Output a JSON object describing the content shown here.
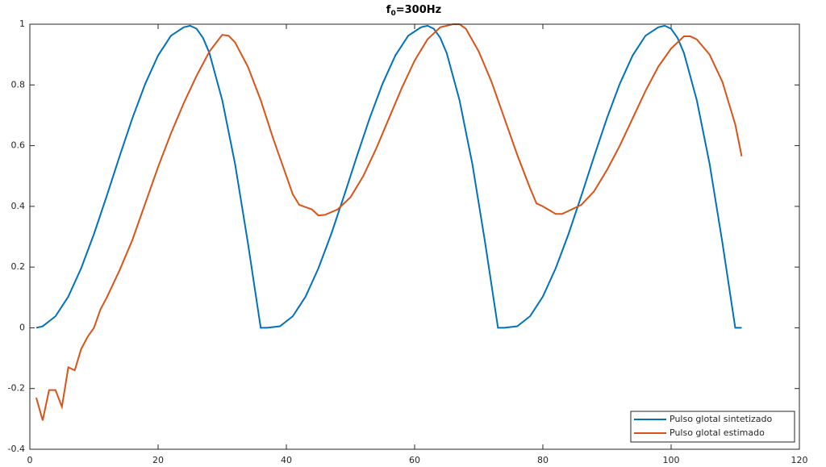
{
  "chart_data": {
    "type": "line",
    "title": {
      "base": "f",
      "subscript": "0",
      "rest": "=300Hz"
    },
    "xlim": [
      0,
      120
    ],
    "xticks": [
      0,
      20,
      40,
      60,
      80,
      100,
      120
    ],
    "ylim": [
      -0.4,
      1
    ],
    "yticks": [
      -0.4,
      -0.2,
      0,
      0.2,
      0.4,
      0.6,
      0.8,
      1
    ],
    "legend": "lower-right",
    "series": [
      {
        "name": "Pulso glotal sintetizado",
        "color": "#0072bd",
        "x": [
          1,
          2,
          4,
          6,
          8,
          10,
          12,
          14,
          16,
          18,
          20,
          22,
          24,
          25,
          26,
          27,
          28,
          30,
          32,
          34,
          36,
          37,
          39,
          41,
          43,
          45,
          47,
          49,
          51,
          53,
          55,
          57,
          59,
          61,
          62,
          63,
          64,
          65,
          67,
          69,
          71,
          73,
          74,
          76,
          78,
          80,
          82,
          84,
          86,
          88,
          90,
          92,
          94,
          96,
          98,
          99,
          100,
          101,
          102,
          104,
          106,
          108,
          110,
          111
        ],
        "values": [
          0,
          0.005,
          0.038,
          0.103,
          0.196,
          0.309,
          0.435,
          0.565,
          0.691,
          0.804,
          0.897,
          0.962,
          0.99,
          0.995,
          0.985,
          0.955,
          0.905,
          0.75,
          0.54,
          0.28,
          0,
          0,
          0.005,
          0.038,
          0.103,
          0.196,
          0.309,
          0.435,
          0.565,
          0.691,
          0.804,
          0.897,
          0.962,
          0.99,
          0.995,
          0.985,
          0.955,
          0.905,
          0.75,
          0.54,
          0.28,
          0,
          0,
          0.005,
          0.038,
          0.103,
          0.196,
          0.309,
          0.435,
          0.565,
          0.691,
          0.804,
          0.897,
          0.962,
          0.99,
          0.995,
          0.985,
          0.955,
          0.905,
          0.75,
          0.54,
          0.28,
          0,
          0
        ]
      },
      {
        "name": "Pulso glotal estimado",
        "color": "#d95319",
        "x": [
          1,
          2,
          3,
          4,
          5,
          6,
          7,
          8,
          9,
          10,
          11,
          12,
          14,
          16,
          18,
          20,
          22,
          24,
          26,
          28,
          30,
          31,
          32,
          34,
          36,
          38,
          40,
          41,
          42,
          44,
          45,
          46,
          48,
          50,
          52,
          54,
          56,
          58,
          60,
          62,
          64,
          66,
          67,
          68,
          70,
          72,
          74,
          76,
          78,
          79,
          80,
          82,
          83,
          84,
          86,
          88,
          90,
          92,
          94,
          96,
          98,
          100,
          102,
          103,
          104,
          106,
          108,
          109,
          110,
          111
        ],
        "values": [
          -0.23,
          -0.305,
          -0.205,
          -0.205,
          -0.26,
          -0.13,
          -0.14,
          -0.07,
          -0.03,
          0,
          0.06,
          0.1,
          0.19,
          0.29,
          0.41,
          0.53,
          0.64,
          0.74,
          0.83,
          0.91,
          0.965,
          0.962,
          0.94,
          0.86,
          0.75,
          0.62,
          0.5,
          0.44,
          0.405,
          0.39,
          0.37,
          0.372,
          0.39,
          0.43,
          0.5,
          0.59,
          0.69,
          0.79,
          0.88,
          0.95,
          0.99,
          1,
          1,
          0.985,
          0.91,
          0.81,
          0.69,
          0.57,
          0.46,
          0.41,
          0.4,
          0.375,
          0.375,
          0.385,
          0.405,
          0.45,
          0.52,
          0.6,
          0.69,
          0.78,
          0.86,
          0.92,
          0.96,
          0.96,
          0.95,
          0.9,
          0.81,
          0.74,
          0.67,
          0.565
        ]
      }
    ]
  }
}
